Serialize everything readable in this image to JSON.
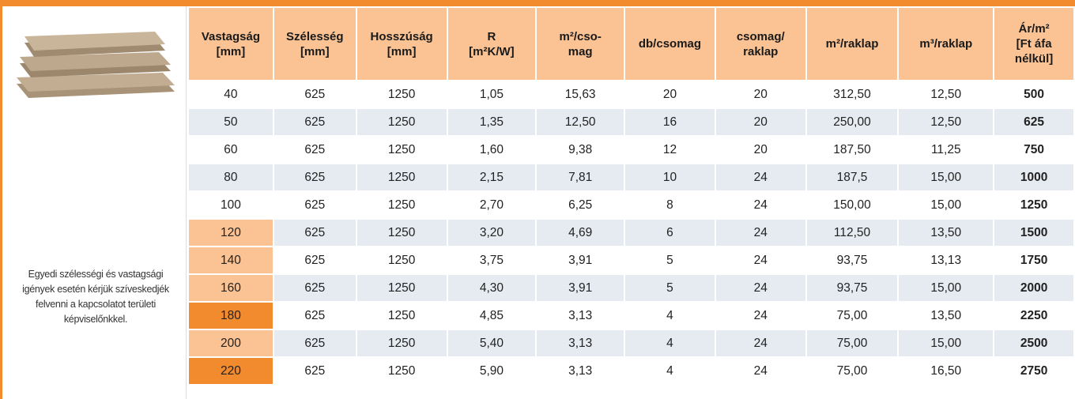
{
  "left_panel": {
    "note": "Egyedi szélességi és vastagsági igények esetén kérjük szíveskedjék felvenni a kapcsolatot területi képviselőnkkel."
  },
  "table": {
    "header": [
      [
        "Vastagság",
        "[mm]"
      ],
      [
        "Szélesség",
        "[mm]"
      ],
      [
        "Hosszúság",
        "[mm]"
      ],
      [
        "R",
        "[m²K/W]"
      ],
      [
        "m²/cso-",
        "mag"
      ],
      [
        "db/csomag"
      ],
      [
        "csomag/",
        "raklap"
      ],
      [
        "m²/raklap"
      ],
      [
        "m³/raklap"
      ],
      [
        "Ár/m²",
        "[Ft áfa",
        "nélkül]"
      ]
    ],
    "rows": [
      [
        "40",
        "625",
        "1250",
        "1,05",
        "15,63",
        "20",
        "20",
        "312,50",
        "12,50",
        "500"
      ],
      [
        "50",
        "625",
        "1250",
        "1,35",
        "12,50",
        "16",
        "20",
        "250,00",
        "12,50",
        "625"
      ],
      [
        "60",
        "625",
        "1250",
        "1,60",
        "9,38",
        "12",
        "20",
        "187,50",
        "11,25",
        "750"
      ],
      [
        "80",
        "625",
        "1250",
        "2,15",
        "7,81",
        "10",
        "24",
        "187,5",
        "15,00",
        "1000"
      ],
      [
        "100",
        "625",
        "1250",
        "2,70",
        "6,25",
        "8",
        "24",
        "150,00",
        "15,00",
        "1250"
      ],
      [
        "120",
        "625",
        "1250",
        "3,20",
        "4,69",
        "6",
        "24",
        "112,50",
        "13,50",
        "1500"
      ],
      [
        "140",
        "625",
        "1250",
        "3,75",
        "3,91",
        "5",
        "24",
        "93,75",
        "13,13",
        "1750"
      ],
      [
        "160",
        "625",
        "1250",
        "4,30",
        "3,91",
        "5",
        "24",
        "93,75",
        "15,00",
        "2000"
      ],
      [
        "180",
        "625",
        "1250",
        "4,85",
        "3,13",
        "4",
        "24",
        "75,00",
        "13,50",
        "2250"
      ],
      [
        "200",
        "625",
        "1250",
        "5,40",
        "3,13",
        "4",
        "24",
        "75,00",
        "15,00",
        "2500"
      ],
      [
        "220",
        "625",
        "1250",
        "5,90",
        "3,13",
        "4",
        "24",
        "75,00",
        "16,50",
        "2750"
      ]
    ]
  }
}
